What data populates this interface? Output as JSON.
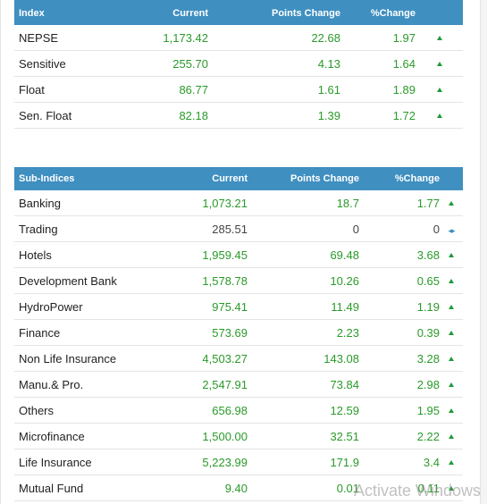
{
  "main_indices": {
    "headers": {
      "name": "Index",
      "current": "Current",
      "points": "Points Change",
      "percent": "%Change"
    },
    "rows": [
      {
        "name": "NEPSE",
        "current": "1,173.42",
        "points": "22.68",
        "percent": "1.97",
        "trend": "up"
      },
      {
        "name": "Sensitive",
        "current": "255.70",
        "points": "4.13",
        "percent": "1.64",
        "trend": "up"
      },
      {
        "name": "Float",
        "current": "86.77",
        "points": "1.61",
        "percent": "1.89",
        "trend": "up"
      },
      {
        "name": "Sen. Float",
        "current": "82.18",
        "points": "1.39",
        "percent": "1.72",
        "trend": "up"
      }
    ]
  },
  "sub_indices": {
    "headers": {
      "name": "Sub-Indices",
      "current": "Current",
      "points": "Points Change",
      "percent": "%Change"
    },
    "rows": [
      {
        "name": "Banking",
        "current": "1,073.21",
        "points": "18.7",
        "percent": "1.77",
        "trend": "up"
      },
      {
        "name": "Trading",
        "current": "285.51",
        "points": "0",
        "percent": "0",
        "trend": "flat"
      },
      {
        "name": "Hotels",
        "current": "1,959.45",
        "points": "69.48",
        "percent": "3.68",
        "trend": "up"
      },
      {
        "name": "Development Bank",
        "current": "1,578.78",
        "points": "10.26",
        "percent": "0.65",
        "trend": "up"
      },
      {
        "name": "HydroPower",
        "current": "975.41",
        "points": "11.49",
        "percent": "1.19",
        "trend": "up"
      },
      {
        "name": "Finance",
        "current": "573.69",
        "points": "2.23",
        "percent": "0.39",
        "trend": "up"
      },
      {
        "name": "Non Life Insurance",
        "current": "4,503.27",
        "points": "143.08",
        "percent": "3.28",
        "trend": "up"
      },
      {
        "name": "Manu.& Pro.",
        "current": "2,547.91",
        "points": "73.84",
        "percent": "2.98",
        "trend": "up"
      },
      {
        "name": "Others",
        "current": "656.98",
        "points": "12.59",
        "percent": "1.95",
        "trend": "up"
      },
      {
        "name": "Microfinance",
        "current": "1,500.00",
        "points": "32.51",
        "percent": "2.22",
        "trend": "up"
      },
      {
        "name": "Life Insurance",
        "current": "5,223.99",
        "points": "171.9",
        "percent": "3.4",
        "trend": "up"
      },
      {
        "name": "Mutual Fund",
        "current": "9.40",
        "points": "0.01",
        "percent": "0.11",
        "trend": "up"
      }
    ]
  },
  "icons": {
    "up": "triangle-up-icon",
    "flat": "left-right-arrows-icon"
  },
  "colors": {
    "header_bg": "#3f8fc0",
    "positive": "#2a9a2a",
    "neutral": "#444444",
    "arrow_up": "#1f9a3a"
  },
  "watermark": "Activate Windows"
}
